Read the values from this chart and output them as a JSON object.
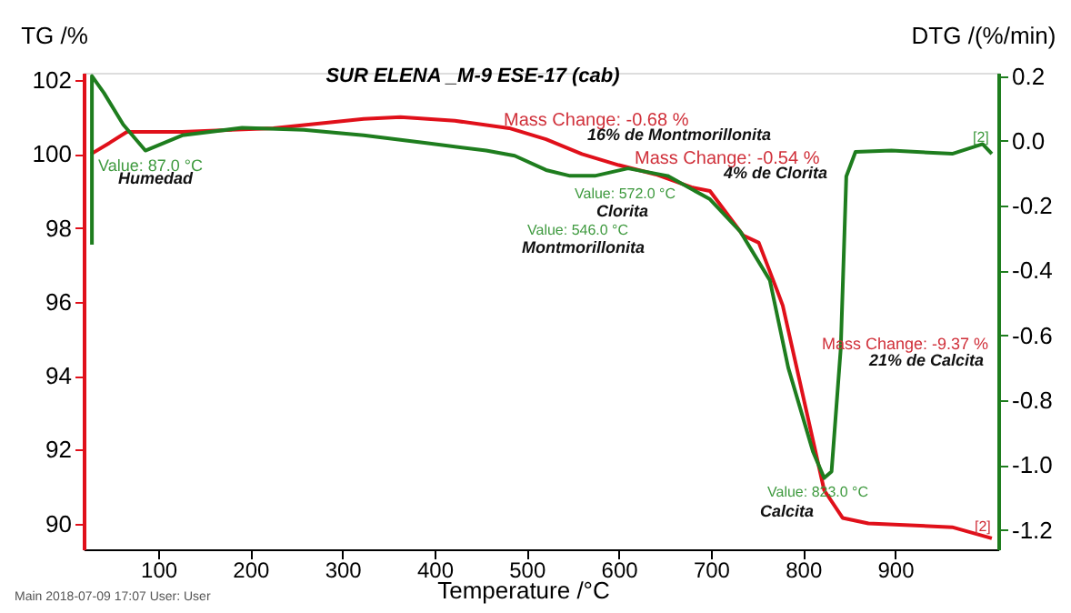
{
  "chart_data": {
    "type": "line",
    "title": "SUR ELENA _M-9 ESE-17 (cab)",
    "xlabel": "Temperature /°C",
    "ylabel": "TG /%",
    "y2label": "DTG /(%/min)",
    "xlim": [
      19,
      1012
    ],
    "xticks": [
      100,
      200,
      300,
      400,
      500,
      600,
      700,
      800,
      900
    ],
    "ylim": [
      89.3,
      102.2
    ],
    "yticks": [
      90,
      92,
      94,
      96,
      98,
      100,
      102
    ],
    "y2lim": [
      -1.26,
      0.21
    ],
    "y2ticks": [
      {
        "value": -1.2,
        "label": "-1.2"
      },
      {
        "value": -1,
        "label": "-1.0"
      },
      {
        "value": -0.8,
        "label": "-0.8"
      },
      {
        "value": -0.6,
        "label": "-0.6"
      },
      {
        "value": -0.4,
        "label": "-0.4"
      },
      {
        "value": -0.2,
        "label": "-0.2"
      },
      {
        "value": 0,
        "label": "0.0"
      },
      {
        "value": 0.2,
        "label": "0.2"
      }
    ],
    "grid": false,
    "marker": "none",
    "line_style": "solid",
    "series": [
      {
        "color": "#e0101a",
        "x": [
          27,
          47,
          66,
          126,
          225,
          323,
          363,
          422,
          481,
          521,
          560,
          600,
          640,
          679,
          699,
          735,
          752,
          772,
          778,
          823,
          843,
          871,
          962,
          1005
        ],
        "values": [
          100.0,
          100.3,
          100.6,
          100.6,
          100.7,
          100.95,
          101.0,
          100.9,
          100.7,
          100.4,
          100.0,
          99.7,
          99.45,
          99.1,
          99.0,
          97.8,
          97.6,
          96.3,
          95.9,
          90.9,
          90.15,
          90.0,
          89.9,
          89.6
        ]
      },
      {
        "color": "#1e7d1e",
        "axis": "y2",
        "x": [
          28,
          28,
          41,
          62,
          86,
          126,
          191,
          258,
          323,
          389,
          456,
          487,
          521,
          547,
          574,
          610,
          653,
          699,
          732,
          764,
          784,
          811,
          823,
          831,
          841,
          847,
          857,
          896,
          962,
          995,
          1005
        ],
        "values": [
          -0.32,
          0.2,
          0.148,
          0.05,
          -0.03,
          0.017,
          0.04,
          0.034,
          0.017,
          -0.006,
          -0.03,
          -0.046,
          -0.09,
          -0.108,
          -0.108,
          -0.085,
          -0.108,
          -0.18,
          -0.28,
          -0.43,
          -0.7,
          -0.96,
          -1.04,
          -1.02,
          -0.64,
          -0.11,
          -0.034,
          -0.03,
          -0.04,
          -0.01,
          -0.04
        ]
      }
    ],
    "annotations": [
      "Mass Change: -0.68 %",
      "16% de Montmorillonita",
      "Mass Change: -0.54 %",
      "4% de Clorita",
      "Value: 87.0 °C",
      "Humedad",
      "Value: 572.0 °C",
      "Clorita",
      "Value: 546.0 °C",
      "Montmorillonita",
      "Mass Change: -9.37 %",
      "21% de Calcita",
      "Value: 823.0 °C",
      "Calcita",
      "[2]",
      "[2]",
      "Main   2018-07-09 17:07   User: User"
    ]
  }
}
